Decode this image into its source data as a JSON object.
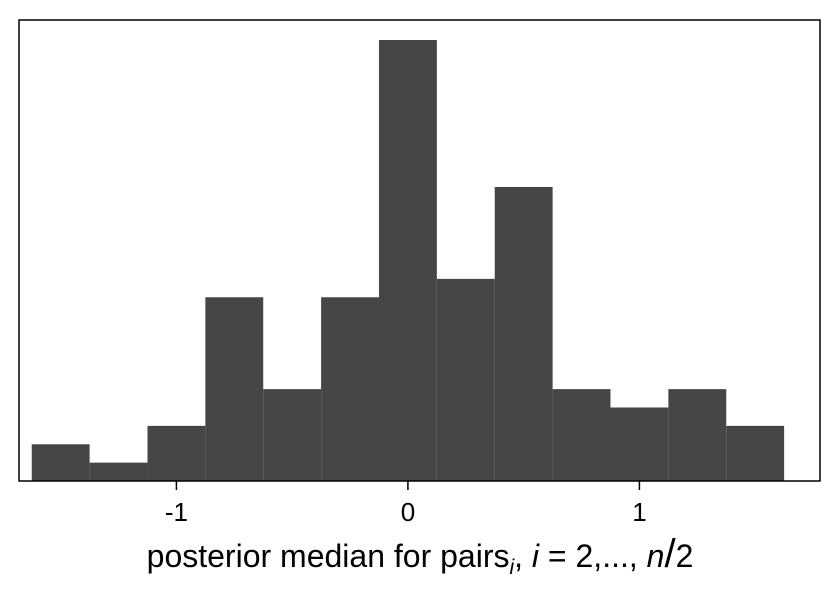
{
  "chart_data": {
    "type": "histogram",
    "title": "",
    "ylabel": "",
    "xlabel": {
      "main": "posterior median for pairs",
      "subscript": "i",
      "after_sub": ", ",
      "var_i": "i",
      "equals_range": " = 2,..., ",
      "var_n": "n",
      "slash": "/",
      "denom": "2"
    },
    "xlim": [
      -1.68,
      1.78
    ],
    "ylim": [
      0,
      24
    ],
    "grid": false,
    "bar_color": "#464646",
    "x_ticks": [
      -1,
      0,
      1
    ],
    "x_tick_labels": [
      "-1",
      "0",
      "1"
    ],
    "bins": [
      {
        "x0": -1.625,
        "x1": -1.375,
        "count": 2
      },
      {
        "x0": -1.375,
        "x1": -1.125,
        "count": 1
      },
      {
        "x0": -1.125,
        "x1": -0.875,
        "count": 3
      },
      {
        "x0": -0.875,
        "x1": -0.625,
        "count": 10
      },
      {
        "x0": -0.625,
        "x1": -0.375,
        "count": 5
      },
      {
        "x0": -0.375,
        "x1": -0.125,
        "count": 10
      },
      {
        "x0": -0.125,
        "x1": 0.125,
        "count": 24
      },
      {
        "x0": 0.125,
        "x1": 0.375,
        "count": 11
      },
      {
        "x0": 0.375,
        "x1": 0.625,
        "count": 16
      },
      {
        "x0": 0.625,
        "x1": 0.875,
        "count": 5
      },
      {
        "x0": 0.875,
        "x1": 1.125,
        "count": 4
      },
      {
        "x0": 1.125,
        "x1": 1.375,
        "count": 5
      },
      {
        "x0": 1.375,
        "x1": 1.625,
        "count": 3
      }
    ]
  }
}
